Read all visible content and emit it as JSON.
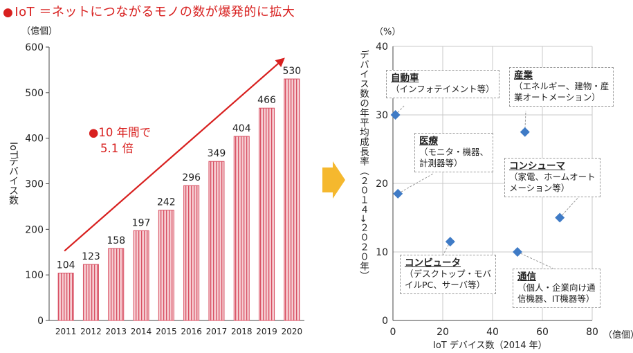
{
  "title": {
    "bullet": "●",
    "text": "IoT ＝ネットにつながるモノの数が爆発的に拡大"
  },
  "chart_data": [
    {
      "type": "bar",
      "categories": [
        "2011",
        "2012",
        "2013",
        "2014",
        "2015",
        "2016",
        "2017",
        "2018",
        "2019",
        "2020"
      ],
      "values": [
        104,
        123,
        158,
        197,
        242,
        296,
        349,
        404,
        466,
        530
      ],
      "yunit": "（億個）",
      "ylabel": "IoTデバイス数",
      "ylim": [
        0,
        600
      ],
      "yticks": [
        0,
        100,
        200,
        300,
        400,
        500,
        600
      ],
      "annotation": {
        "line1": "●10 年間で",
        "line2": "5.1 倍"
      },
      "colors": {
        "bar_fill": "#f6cdd2",
        "bar_stripe": "#d84f62",
        "arrow": "#d8201f"
      }
    },
    {
      "type": "scatter",
      "xlabel": "IoT デバイス数（2014 年）",
      "xunit": "（億個）",
      "ylabel": "デバイス数の年平均成長率（２０１４→２０２０年）",
      "yunit": "（%）",
      "xlim": [
        0,
        80
      ],
      "ylim": [
        0,
        40
      ],
      "xticks": [
        0,
        20,
        40,
        60,
        80
      ],
      "yticks": [
        0,
        10,
        20,
        30,
        40
      ],
      "grid": true,
      "marker_color": "#3f7bc6",
      "points": [
        {
          "x": 1,
          "y": 30,
          "label": "自動車",
          "detail": "（インフォテイメント等）"
        },
        {
          "x": 53,
          "y": 27.5,
          "label": "産業",
          "detail": "（エネルギー、建物・産\n業オートメーション）"
        },
        {
          "x": 2,
          "y": 18.5,
          "label": "医療",
          "detail": "（モニタ・機器、\n計測器等）"
        },
        {
          "x": 67,
          "y": 15,
          "label": "コンシューマ",
          "detail": "（家電、ホームオート\nメーション等）"
        },
        {
          "x": 23,
          "y": 11.5,
          "label": "コンピュータ",
          "detail": "（デスクトップ・モバ\nイルPC、サーバ等）"
        },
        {
          "x": 50,
          "y": 10,
          "label": "通信",
          "detail": "（個人・企業向け通\n信機器、IT機器等）"
        }
      ]
    }
  ],
  "flow_arrow": {
    "color": "#f5b82e"
  }
}
